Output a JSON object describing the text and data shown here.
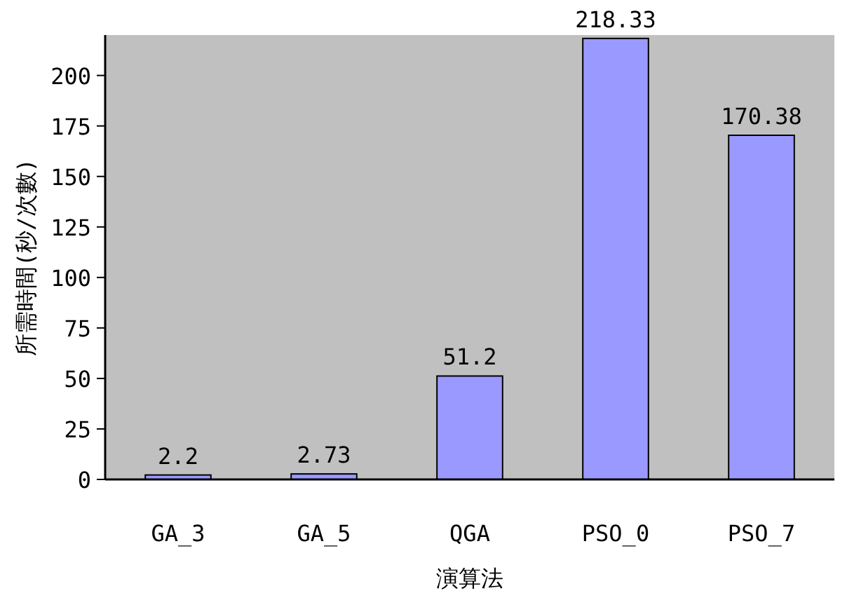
{
  "chart_data": {
    "type": "bar",
    "xlabel": "演算法",
    "ylabel": "所需時間(秒/次數)",
    "categories": [
      "GA_3",
      "GA_5",
      "QGA",
      "PSO_0",
      "PSO_7"
    ],
    "values": [
      2.2,
      2.73,
      51.2,
      218.33,
      170.38
    ],
    "color": "#9999ff",
    "ylim": [
      0,
      220
    ],
    "yticks": [
      0,
      25,
      50,
      75,
      100,
      125,
      150,
      175,
      200
    ],
    "data_labels": true,
    "grid": false
  }
}
